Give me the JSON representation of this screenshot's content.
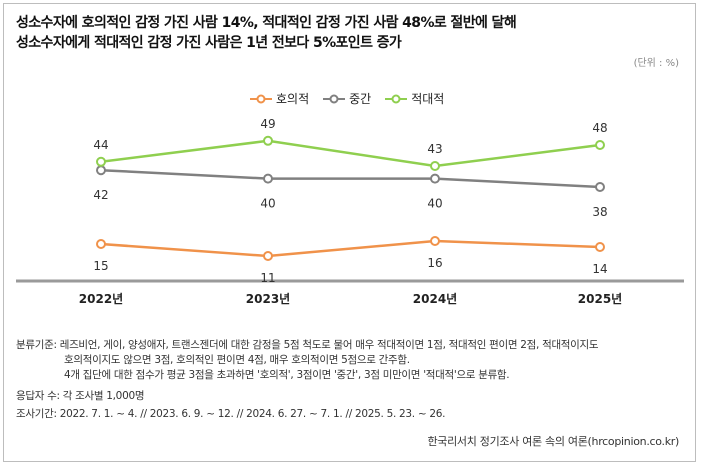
{
  "title_line1": "성소수자에 호의적인 감정 가진 사람 14%, 적대적인 감정 가진 사람 48%로 절반에 달해",
  "title_line2": "성소수자에게 적대적인 감정 가진 사람은 1년 전보다 5%포인트 증가",
  "unit": "(단위 : %)",
  "chart_data": {
    "type": "line",
    "categories": [
      "2022년",
      "2023년",
      "2024년",
      "2025년"
    ],
    "series": [
      {
        "name": "호의적",
        "values": [
          15,
          11,
          16,
          14
        ],
        "color": "#f0924a"
      },
      {
        "name": "중간",
        "values": [
          42,
          40,
          40,
          38
        ],
        "color": "#808080"
      },
      {
        "name": "적대적",
        "values": [
          44,
          49,
          43,
          48
        ],
        "color": "#8fcf4f"
      }
    ],
    "legend_position": "top-center",
    "grid": false
  },
  "notes": {
    "line1": "분류기준: 레즈비언, 게이, 양성애자, 트랜스젠더에 대한  감정을 5점 척도로 물어 매우 적대적이면 1점, 적대적인 편이면 2점, 적대적이지도",
    "line2": "호의적이지도 않으면 3점, 호의적인 편이면 4점, 매우 호의적이면 5점으로 간주함.",
    "line3": "4개 집단에 대한 점수가 평균 3점을 초과하면 '호의적', 3점이면 '중간', 3점 미만이면 '적대적'으로 분류함.",
    "respondents": "응답자 수: 각 조사별 1,000명",
    "period": "조사기간: 2022. 7. 1. ~ 4.  //  2023. 6. 9. ~ 12. //  2024. 6. 27. ~ 7. 1. // 2025. 5. 23. ~ 26."
  },
  "source": "한국리서치 정기조사 여론 속의 여론(hrcopinion.co.kr)"
}
